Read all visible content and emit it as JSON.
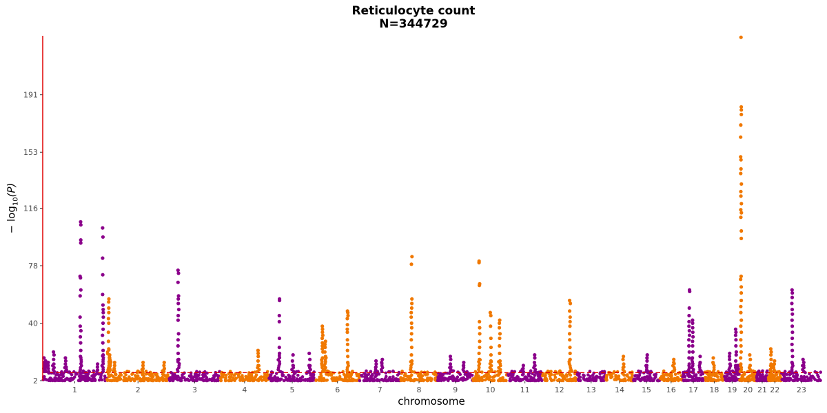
{
  "chart_data": {
    "type": "scatter",
    "subtype": "manhattan",
    "title": "Reticulocyte count",
    "subtitle": "N=344729",
    "xlabel": "chromosome",
    "ylabel": "−log10(P)",
    "ylabel_main": "− log",
    "ylabel_sub": "10",
    "ylabel_arg": "(P)",
    "y_ticks": [
      2,
      40,
      78,
      116,
      153,
      191
    ],
    "ylim": [
      2,
      230
    ],
    "significance_line": 7.3,
    "colors": {
      "odd": "#8b008b",
      "even": "#f07800",
      "threshold": "#e00000",
      "axis": "#e00000"
    },
    "categories": [
      "1",
      "2",
      "3",
      "4",
      "5",
      "6",
      "7",
      "8",
      "9",
      "10",
      "11",
      "12",
      "13",
      "14",
      "15",
      "16",
      "17",
      "18",
      "19",
      "20",
      "21",
      "22",
      "23"
    ],
    "chromosome_lengths_mb": [
      249,
      243,
      198,
      190,
      181,
      171,
      159,
      145,
      138,
      134,
      135,
      133,
      114,
      107,
      102,
      90,
      83,
      80,
      59,
      64,
      47,
      51,
      156
    ],
    "peaks": [
      {
        "chr": "1",
        "pos": 0.02,
        "values": [
          17,
          14,
          12,
          10
        ]
      },
      {
        "chr": "1",
        "pos": 0.04,
        "values": [
          15,
          13,
          11,
          9
        ]
      },
      {
        "chr": "1",
        "pos": 0.09,
        "values": [
          14,
          12,
          10,
          8
        ]
      },
      {
        "chr": "1",
        "pos": 0.17,
        "values": [
          21,
          19,
          16,
          13
        ]
      },
      {
        "chr": "1",
        "pos": 0.36,
        "values": [
          17,
          15,
          13,
          11
        ]
      },
      {
        "chr": "1",
        "pos": 0.59,
        "values": [
          107,
          105,
          95,
          93,
          71,
          70,
          62,
          58,
          44,
          38,
          35,
          31,
          27,
          22,
          18
        ]
      },
      {
        "chr": "1",
        "pos": 0.86,
        "values": [
          13,
          11,
          9
        ]
      },
      {
        "chr": "1",
        "pos": 0.94,
        "values": [
          103,
          97,
          83,
          72,
          59,
          52,
          49,
          47,
          44,
          40,
          36,
          32,
          27,
          22,
          19
        ]
      },
      {
        "chr": "2",
        "pos": 0.03,
        "values": [
          56,
          54,
          50,
          47,
          43,
          40,
          34,
          28,
          23
        ]
      },
      {
        "chr": "2",
        "pos": 0.05,
        "values": [
          19,
          17
        ]
      },
      {
        "chr": "2",
        "pos": 0.12,
        "values": [
          14,
          12,
          10
        ]
      },
      {
        "chr": "2",
        "pos": 0.58,
        "values": [
          14,
          12,
          10
        ]
      },
      {
        "chr": "2",
        "pos": 0.92,
        "values": [
          14,
          12,
          10
        ]
      },
      {
        "chr": "3",
        "pos": 0.18,
        "values": [
          75,
          73,
          67,
          58,
          56,
          53,
          49,
          45,
          42,
          33,
          29,
          25,
          20,
          16
        ]
      },
      {
        "chr": "4",
        "pos": 0.78,
        "values": [
          22,
          20,
          18,
          15,
          12
        ]
      },
      {
        "chr": "5",
        "pos": 0.22,
        "values": [
          56,
          55,
          45,
          41,
          30,
          24,
          20
        ]
      },
      {
        "chr": "5",
        "pos": 0.51,
        "values": [
          19,
          15,
          12
        ]
      },
      {
        "chr": "5",
        "pos": 0.87,
        "values": [
          20,
          16,
          12
        ]
      },
      {
        "chr": "6",
        "pos": 0.16,
        "values": [
          38,
          36,
          34,
          32,
          30,
          27,
          25,
          23,
          21,
          17
        ]
      },
      {
        "chr": "6",
        "pos": 0.22,
        "values": [
          28,
          26,
          24,
          21,
          18
        ]
      },
      {
        "chr": "6",
        "pos": 0.73,
        "values": [
          48,
          47,
          45,
          43,
          39,
          36,
          34,
          29,
          26,
          22,
          18,
          14
        ]
      },
      {
        "chr": "7",
        "pos": 0.41,
        "values": [
          15,
          13,
          11
        ]
      },
      {
        "chr": "7",
        "pos": 0.55,
        "values": [
          16,
          14
        ]
      },
      {
        "chr": "8",
        "pos": 0.3,
        "values": [
          84,
          79,
          56,
          53,
          50,
          47,
          44,
          40,
          37,
          33,
          29,
          24,
          19,
          15
        ]
      },
      {
        "chr": "9",
        "pos": 0.36,
        "values": [
          18,
          16,
          13,
          11
        ]
      },
      {
        "chr": "9",
        "pos": 0.73,
        "values": [
          14,
          12
        ]
      },
      {
        "chr": "10",
        "pos": 0.18,
        "values": [
          81,
          80,
          66,
          65,
          41,
          37,
          33,
          28,
          24,
          20,
          16
        ]
      },
      {
        "chr": "10",
        "pos": 0.51,
        "values": [
          47,
          45,
          38,
          30,
          24,
          19,
          15
        ]
      },
      {
        "chr": "10",
        "pos": 0.77,
        "values": [
          42,
          40,
          37,
          33,
          30,
          25,
          20,
          15
        ]
      },
      {
        "chr": "11",
        "pos": 0.45,
        "values": [
          12,
          10
        ]
      },
      {
        "chr": "11",
        "pos": 0.78,
        "values": [
          19,
          17,
          14,
          12
        ]
      },
      {
        "chr": "12",
        "pos": 0.81,
        "values": [
          55,
          53,
          48,
          44,
          41,
          38,
          33,
          29,
          24,
          20,
          16
        ]
      },
      {
        "chr": "14",
        "pos": 0.64,
        "values": [
          18,
          16,
          13,
          11
        ]
      },
      {
        "chr": "15",
        "pos": 0.52,
        "values": [
          19,
          17,
          15,
          12
        ]
      },
      {
        "chr": "16",
        "pos": 0.62,
        "values": [
          16,
          14
        ]
      },
      {
        "chr": "17",
        "pos": 0.31,
        "values": [
          62,
          61,
          50,
          45,
          41,
          38,
          35,
          32,
          29,
          25,
          21,
          17,
          13
        ]
      },
      {
        "chr": "17",
        "pos": 0.47,
        "values": [
          42,
          40,
          37,
          34,
          31,
          28,
          25,
          21,
          17
        ]
      },
      {
        "chr": "17",
        "pos": 0.83,
        "values": [
          18,
          14
        ]
      },
      {
        "chr": "18",
        "pos": 0.46,
        "values": [
          17,
          14
        ]
      },
      {
        "chr": "19",
        "pos": 0.35,
        "values": [
          20,
          18,
          16,
          13
        ]
      },
      {
        "chr": "19",
        "pos": 0.75,
        "values": [
          36,
          34,
          32,
          29,
          25,
          21,
          19,
          15,
          12
        ]
      },
      {
        "chr": "19",
        "pos": 0.88,
        "values": [
          12,
          10
        ]
      },
      {
        "chr": "20",
        "pos": 0.08,
        "values": [
          229,
          183,
          181,
          178,
          171,
          163,
          150,
          148,
          142,
          139,
          132,
          127,
          124,
          119,
          115,
          113,
          110,
          101,
          96,
          71,
          69,
          64,
          60,
          55,
          51,
          47,
          42,
          38,
          34,
          29,
          25,
          21,
          17,
          13
        ]
      },
      {
        "chr": "20",
        "pos": 0.63,
        "values": [
          19,
          16,
          12
        ]
      },
      {
        "chr": "22",
        "pos": 0.22,
        "values": [
          23,
          21,
          19,
          16,
          13
        ]
      },
      {
        "chr": "22",
        "pos": 0.46,
        "values": [
          15,
          13
        ]
      },
      {
        "chr": "23",
        "pos": 0.27,
        "values": [
          62,
          60,
          57,
          53,
          49,
          46,
          42,
          38,
          34,
          30,
          26,
          22,
          18,
          14
        ]
      },
      {
        "chr": "23",
        "pos": 0.55,
        "values": [
          16,
          14,
          12
        ]
      }
    ]
  }
}
